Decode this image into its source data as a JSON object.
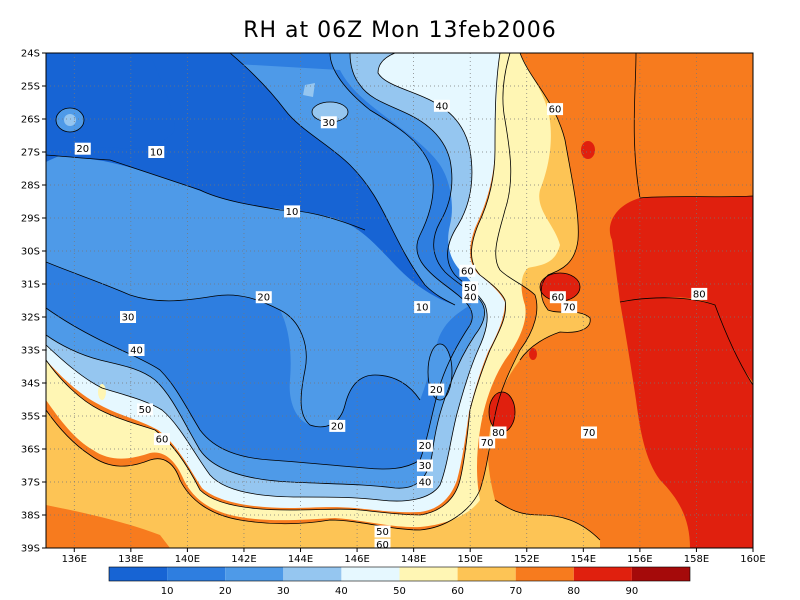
{
  "title": "RH at 06Z Mon 13feb2006",
  "lat_labels": [
    "24S",
    "25S",
    "26S",
    "27S",
    "28S",
    "29S",
    "30S",
    "31S",
    "32S",
    "33S",
    "34S",
    "35S",
    "36S",
    "37S",
    "38S",
    "39S"
  ],
  "lon_labels": [
    "136E",
    "138E",
    "140E",
    "142E",
    "144E",
    "146E",
    "148E",
    "150E",
    "152E",
    "154E",
    "156E",
    "158E",
    "160E"
  ],
  "colorbar": {
    "colors": [
      "#1764d4",
      "#2e7ee0",
      "#4e9ae8",
      "#95c6f0",
      "#e6f8ff",
      "#fff6b4",
      "#fdc455",
      "#f77b1e",
      "#e0200e",
      "#a50a0a"
    ],
    "labels": [
      "10",
      "20",
      "30",
      "40",
      "50",
      "60",
      "70",
      "80",
      "90"
    ]
  },
  "palette": {
    "rh_lt10": "#1764d4",
    "rh_10_20": "#2e7ee0",
    "rh_20_30": "#4e9ae8",
    "rh_30_40": "#95c6f0",
    "rh_40_50": "#e6f8ff",
    "rh_50_60": "#fff6b4",
    "rh_60_70": "#fdc455",
    "rh_70_80": "#f77b1e",
    "rh_80_90": "#e0200e"
  },
  "contour_labels": [
    {
      "text": "10",
      "lon": 138.9,
      "lat": 27.0
    },
    {
      "text": "10",
      "lon": 143.7,
      "lat": 28.8
    },
    {
      "text": "10",
      "lon": 148.3,
      "lat": 31.7
    },
    {
      "text": "20",
      "lon": 136.3,
      "lat": 26.9
    },
    {
      "text": "20",
      "lon": 142.7,
      "lat": 31.4
    },
    {
      "text": "20",
      "lon": 148.8,
      "lat": 34.2
    },
    {
      "text": "20",
      "lon": 145.3,
      "lat": 35.3
    },
    {
      "text": "20",
      "lon": 148.4,
      "lat": 35.9
    },
    {
      "text": "30",
      "lon": 145.0,
      "lat": 26.1
    },
    {
      "text": "30",
      "lon": 137.9,
      "lat": 32.0
    },
    {
      "text": "30",
      "lon": 148.4,
      "lat": 36.5
    },
    {
      "text": "40",
      "lon": 149.0,
      "lat": 25.6
    },
    {
      "text": "40",
      "lon": 138.2,
      "lat": 33.0
    },
    {
      "text": "40",
      "lon": 148.4,
      "lat": 37.0
    },
    {
      "text": "40",
      "lon": 150.0,
      "lat": 31.4
    },
    {
      "text": "50",
      "lon": 150.0,
      "lat": 31.1
    },
    {
      "text": "50",
      "lon": 138.5,
      "lat": 34.8
    },
    {
      "text": "50",
      "lon": 146.9,
      "lat": 38.5
    },
    {
      "text": "60",
      "lon": 153.0,
      "lat": 25.7
    },
    {
      "text": "60",
      "lon": 149.9,
      "lat": 30.6
    },
    {
      "text": "60",
      "lon": 153.1,
      "lat": 31.4
    },
    {
      "text": "60",
      "lon": 139.1,
      "lat": 35.7
    },
    {
      "text": "60",
      "lon": 146.9,
      "lat": 38.9
    },
    {
      "text": "70",
      "lon": 153.5,
      "lat": 31.7
    },
    {
      "text": "70",
      "lon": 150.6,
      "lat": 35.8
    },
    {
      "text": "70",
      "lon": 154.2,
      "lat": 35.5
    },
    {
      "text": "80",
      "lon": 151.0,
      "lat": 35.5
    },
    {
      "text": "80",
      "lon": 158.1,
      "lat": 31.3
    }
  ]
}
